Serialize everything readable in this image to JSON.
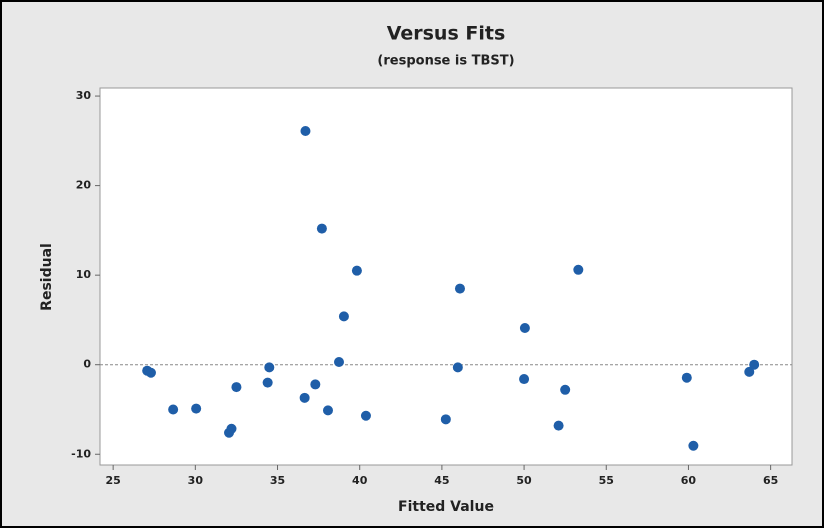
{
  "chart_data": {
    "type": "scatter",
    "title": "Versus Fits",
    "subtitle": "(response is TBST)",
    "x_label": "Fitted Value",
    "y_label": "Residual",
    "color": "#1f5ea8",
    "x": [
      27.07,
      27.3,
      28.65,
      30.05,
      32.05,
      32.2,
      32.5,
      34.4,
      34.5,
      36.7,
      36.65,
      37.3,
      37.7,
      38.07,
      38.74,
      39.04,
      39.83,
      40.38,
      45.24,
      45.97,
      46.1,
      50.0,
      50.05,
      52.1,
      52.5,
      53.3,
      59.9,
      60.3,
      63.7,
      64.0
    ],
    "values": [
      -0.67,
      -0.9,
      -5.0,
      -4.9,
      -7.6,
      -7.15,
      -2.5,
      -2.0,
      -0.3,
      26.1,
      -3.7,
      -2.2,
      15.2,
      -5.1,
      0.3,
      5.4,
      10.5,
      -5.7,
      -6.1,
      -0.3,
      8.5,
      -1.6,
      4.1,
      -6.8,
      -2.8,
      10.6,
      -1.45,
      -9.05,
      -0.8,
      0.0
    ],
    "xlim": [
      24.2,
      66.3
    ],
    "ylim": [
      -11.2,
      30.9
    ],
    "xticks": [
      25,
      30,
      35,
      40,
      45,
      50,
      55,
      60,
      65
    ],
    "yticks": [
      -10,
      0,
      10,
      20,
      30
    ],
    "reference_line": 0
  }
}
